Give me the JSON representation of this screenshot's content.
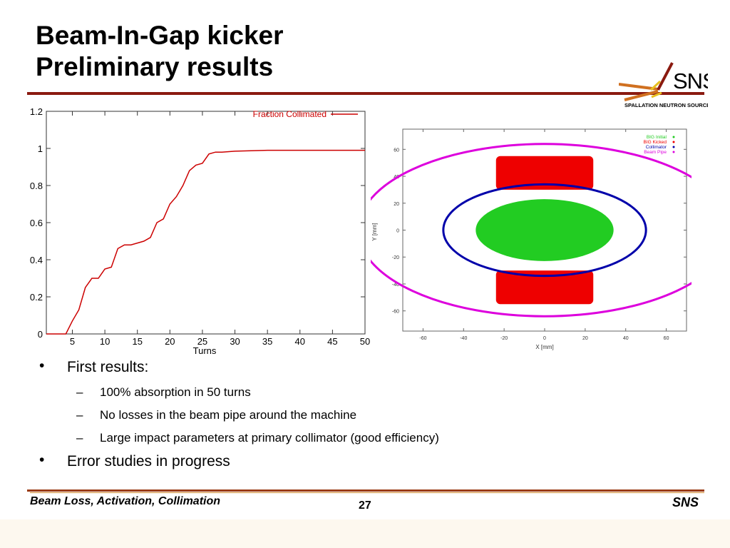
{
  "slide": {
    "title_line1": "Beam-In-Gap kicker",
    "title_line2": "Preliminary results",
    "logo_text": "SNS",
    "logo_subtext": "SPALLATION NEUTRON SOURCE",
    "bullets": [
      {
        "text": "First results:",
        "sub": [
          "100% absorption in 50 turns",
          "No losses in the beam pipe around the machine",
          "Large impact parameters at primary collimator (good efficiency)"
        ]
      },
      {
        "text": "Error studies in progress",
        "sub": []
      }
    ],
    "bullet_glyph": "•",
    "dash_glyph": "–",
    "footer_left": "Beam Loss, Activation, Collimation",
    "page_number": "27",
    "footer_right": "SNS"
  },
  "colors": {
    "title_rule": "#8a1a10",
    "line_red": "#cc0000",
    "bit_initial": "#22cc22",
    "bit_kicked": "#ee0000",
    "collimator": "#0000aa",
    "beam_pipe": "#dd00dd"
  },
  "chart_data": [
    {
      "type": "line",
      "xlabel": "Turns",
      "ylabel": "",
      "xlim": [
        1,
        50
      ],
      "ylim": [
        0,
        1.2
      ],
      "x_ticks": [
        "5",
        "10",
        "15",
        "20",
        "25",
        "30",
        "35",
        "40",
        "45",
        "50"
      ],
      "y_ticks": [
        "0",
        "0.2",
        "0.4",
        "0.6",
        "0.8",
        "1",
        "1.2"
      ],
      "legend": "top-right",
      "series": [
        {
          "name": "Fraction Collimated",
          "x": [
            1,
            2,
            3,
            4,
            5,
            6,
            7,
            8,
            9,
            10,
            11,
            12,
            13,
            14,
            15,
            16,
            17,
            18,
            19,
            20,
            21,
            22,
            23,
            24,
            25,
            26,
            27,
            28,
            30,
            35,
            40,
            45,
            50
          ],
          "y": [
            0,
            0,
            0,
            0,
            0.07,
            0.13,
            0.25,
            0.3,
            0.3,
            0.35,
            0.36,
            0.46,
            0.48,
            0.48,
            0.49,
            0.5,
            0.52,
            0.6,
            0.62,
            0.7,
            0.74,
            0.8,
            0.88,
            0.91,
            0.92,
            0.97,
            0.98,
            0.98,
            0.985,
            0.99,
            0.99,
            0.99,
            0.99
          ]
        }
      ]
    },
    {
      "type": "scatter",
      "xlabel": "X [mm]",
      "ylabel": "Y [mm]",
      "xlim": [
        -70,
        70
      ],
      "ylim": [
        -75,
        75
      ],
      "x_ticks": [
        "-60",
        "-40",
        "-20",
        "0",
        "20",
        "40",
        "60"
      ],
      "y_ticks": [
        "-60",
        "-40",
        "-20",
        "0",
        "20",
        "40",
        "60"
      ],
      "legend": "top-right",
      "series": [
        {
          "name": "BIG Initial",
          "shape": "ellipse",
          "rx": 34,
          "ry": 23
        },
        {
          "name": "BIG Kicked",
          "shape": "band",
          "x_range": [
            -24,
            24
          ],
          "y_range_top": [
            30,
            55
          ],
          "y_range_bottom": [
            -55,
            -30
          ]
        },
        {
          "name": "Collimator",
          "shape": "ellipse",
          "rx": 50,
          "ry": 34
        },
        {
          "name": "Beam Pipe",
          "shape": "ellipse",
          "rx": 92,
          "ry": 64
        }
      ]
    }
  ]
}
